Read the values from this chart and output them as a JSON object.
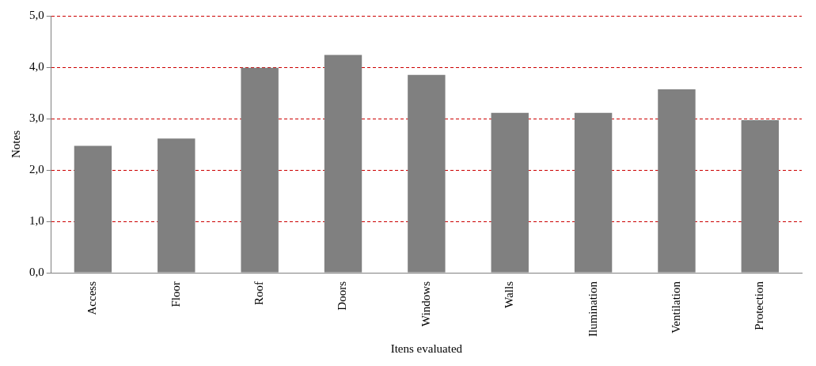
{
  "chart_data": {
    "type": "bar",
    "xlabel": "Itens evaluated",
    "ylabel": "Notes",
    "categories": [
      "Access",
      "Floor",
      "Roof",
      "Doors",
      "Windows",
      "Walls",
      "Ilumination",
      "Ventilation",
      "Protection"
    ],
    "values": [
      2.47,
      2.61,
      3.99,
      4.24,
      3.85,
      3.11,
      3.11,
      3.57,
      2.97
    ],
    "color": "#808080",
    "ylim": [
      0,
      5
    ],
    "yticks": [
      {
        "value": 0,
        "label": "0,0"
      },
      {
        "value": 1,
        "label": "1,0"
      },
      {
        "value": 2,
        "label": "2,0"
      },
      {
        "value": 3,
        "label": "3,0"
      },
      {
        "value": 4,
        "label": "4,0"
      },
      {
        "value": 5,
        "label": "5,0"
      }
    ],
    "grid": "y",
    "legend": false
  }
}
